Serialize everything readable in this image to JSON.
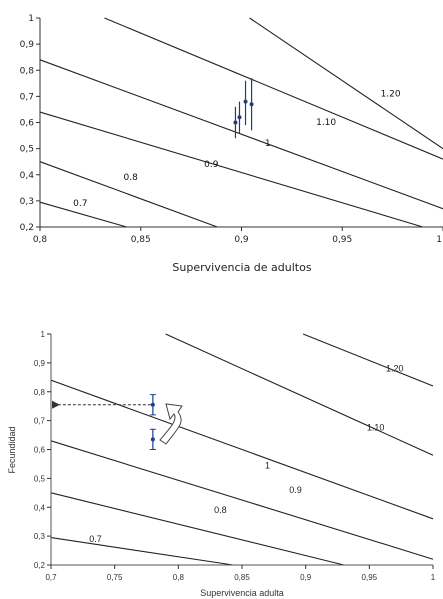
{
  "chart_data": [
    {
      "type": "line",
      "xlabel": "Supervivencia de adultos",
      "ylabel": "",
      "xlim": [
        0.8,
        1.0
      ],
      "ylim": [
        0.2,
        1.0
      ],
      "x_ticks": [
        "0,8",
        "0,85",
        "0,9",
        "0,95",
        "1"
      ],
      "y_ticks": [
        "0,2",
        "0,3",
        "0,4",
        "0,5",
        "0,6",
        "0,7",
        "0,8",
        "0,9",
        "1"
      ],
      "grid": false,
      "series": [
        {
          "name": "0.7",
          "x": [
            0.8,
            0.843
          ],
          "y": [
            0.295,
            0.2
          ]
        },
        {
          "name": "0.8",
          "x": [
            0.8,
            0.888
          ],
          "y": [
            0.45,
            0.2
          ]
        },
        {
          "name": "0.9",
          "x": [
            0.8,
            0.99
          ],
          "y": [
            0.64,
            0.2
          ]
        },
        {
          "name": "1",
          "x": [
            0.8,
            1.0
          ],
          "y": [
            0.84,
            0.27
          ]
        },
        {
          "name": "1.10",
          "x": [
            0.832,
            1.0
          ],
          "y": [
            1.0,
            0.46
          ]
        },
        {
          "name": "1.20",
          "x": [
            0.904,
            1.0
          ],
          "y": [
            1.0,
            0.5
          ]
        }
      ],
      "contour_labels": [
        {
          "text": "0.7",
          "x": 0.82,
          "y": 0.28
        },
        {
          "text": "0.8",
          "x": 0.845,
          "y": 0.38
        },
        {
          "text": "0.9",
          "x": 0.885,
          "y": 0.43
        },
        {
          "text": "1",
          "x": 0.913,
          "y": 0.51
        },
        {
          "text": "1.10",
          "x": 0.942,
          "y": 0.59
        },
        {
          "text": "1.20",
          "x": 0.974,
          "y": 0.7
        }
      ],
      "points": [
        {
          "x": 0.897,
          "y": 0.6,
          "ylow": 0.54,
          "yhigh": 0.66
        },
        {
          "x": 0.899,
          "y": 0.62,
          "ylow": 0.56,
          "yhigh": 0.68
        },
        {
          "x": 0.902,
          "y": 0.68,
          "ylow": 0.59,
          "yhigh": 0.76
        },
        {
          "x": 0.905,
          "y": 0.67,
          "ylow": 0.57,
          "yhigh": 0.77
        }
      ]
    },
    {
      "type": "line",
      "xlabel": "Supervivencia adulta",
      "ylabel": "Fecundidad",
      "xlim": [
        0.7,
        1.0
      ],
      "ylim": [
        0.2,
        1.0
      ],
      "x_ticks": [
        "0,7",
        "0,75",
        "0,8",
        "0,85",
        "0,9",
        "0,95",
        "1"
      ],
      "y_ticks": [
        "0,2",
        "0,3",
        "0,4",
        "0,5",
        "0,6",
        "0,7",
        "0,8",
        "0,9",
        "1"
      ],
      "grid": false,
      "series": [
        {
          "name": "0.7",
          "x": [
            0.7,
            0.843
          ],
          "y": [
            0.295,
            0.2
          ]
        },
        {
          "name": "0.8",
          "x": [
            0.7,
            0.93
          ],
          "y": [
            0.45,
            0.2
          ]
        },
        {
          "name": "0.9",
          "x": [
            0.7,
            1.0
          ],
          "y": [
            0.63,
            0.22
          ]
        },
        {
          "name": "1",
          "x": [
            0.7,
            1.0
          ],
          "y": [
            0.84,
            0.36
          ]
        },
        {
          "name": "1.10",
          "x": [
            0.79,
            1.0
          ],
          "y": [
            1.0,
            0.58
          ]
        },
        {
          "name": "1.20",
          "x": [
            0.898,
            1.0
          ],
          "y": [
            1.0,
            0.82
          ]
        }
      ],
      "contour_labels": [
        {
          "text": "0.7",
          "x": 0.735,
          "y": 0.28
        },
        {
          "text": "0.8",
          "x": 0.833,
          "y": 0.38
        },
        {
          "text": "0.9",
          "x": 0.892,
          "y": 0.45
        },
        {
          "text": "1",
          "x": 0.87,
          "y": 0.535
        },
        {
          "text": "1.10",
          "x": 0.955,
          "y": 0.665
        },
        {
          "text": "1.20",
          "x": 0.97,
          "y": 0.87
        }
      ],
      "points": [
        {
          "x": 0.78,
          "y": 0.755,
          "ylow": 0.72,
          "yhigh": 0.79
        },
        {
          "x": 0.78,
          "y": 0.635,
          "ylow": 0.6,
          "yhigh": 0.67
        }
      ],
      "arrow": {
        "from_x": 0.78,
        "to_x": 0.7,
        "y": 0.755
      }
    }
  ]
}
